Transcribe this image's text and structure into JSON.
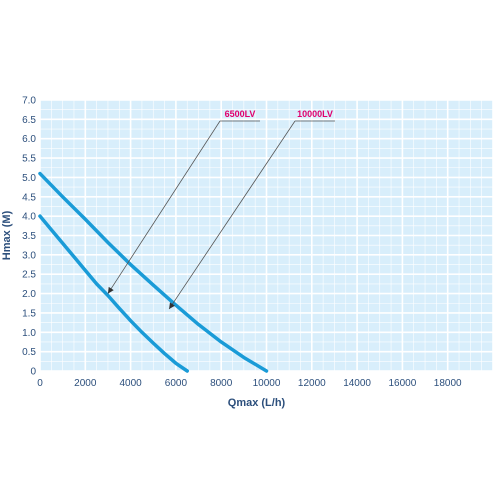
{
  "chart_data": {
    "type": "line",
    "xlabel": "Qmax (L/h)",
    "ylabel": "Hmax (M)",
    "xlim": [
      0,
      20000
    ],
    "ylim": [
      0,
      7.0
    ],
    "x_ticks": [
      "0",
      "2000",
      "4000",
      "6000",
      "8000",
      "10000",
      "12000",
      "14000",
      "16000",
      "18000"
    ],
    "y_ticks": [
      "0",
      "0.5",
      "1.0",
      "1.5",
      "2.0",
      "2.5",
      "3.0",
      "3.5",
      "4.0",
      "4.5",
      "5.0",
      "5.5",
      "6.0",
      "6.5",
      "7.0"
    ],
    "grid": true,
    "series": [
      {
        "name": "6500LV",
        "x": [
          0,
          500,
          1000,
          1500,
          2000,
          2500,
          3000,
          3500,
          4000,
          4500,
          5000,
          5500,
          6000,
          6500
        ],
        "y": [
          4.0,
          3.65,
          3.3,
          2.95,
          2.6,
          2.25,
          1.95,
          1.62,
          1.3,
          1.0,
          0.72,
          0.45,
          0.2,
          0
        ]
      },
      {
        "name": "10000LV",
        "x": [
          0,
          1000,
          2000,
          3000,
          4000,
          5000,
          6000,
          7000,
          8000,
          9000,
          10000
        ],
        "y": [
          5.1,
          4.5,
          3.92,
          3.32,
          2.75,
          2.22,
          1.7,
          1.2,
          0.75,
          0.35,
          0
        ]
      }
    ],
    "annotations": [
      {
        "label": "6500LV",
        "target_x": 3000,
        "target_y": 2.0
      },
      {
        "label": "10000LV",
        "target_x": 5700,
        "target_y": 1.6
      }
    ],
    "colors": {
      "plot_background": "#d8eefb",
      "grid": "#ffffff",
      "curve": "#1a9bd7",
      "callout_text": "#e0006d",
      "axis_text": "#2c4f7c"
    }
  }
}
